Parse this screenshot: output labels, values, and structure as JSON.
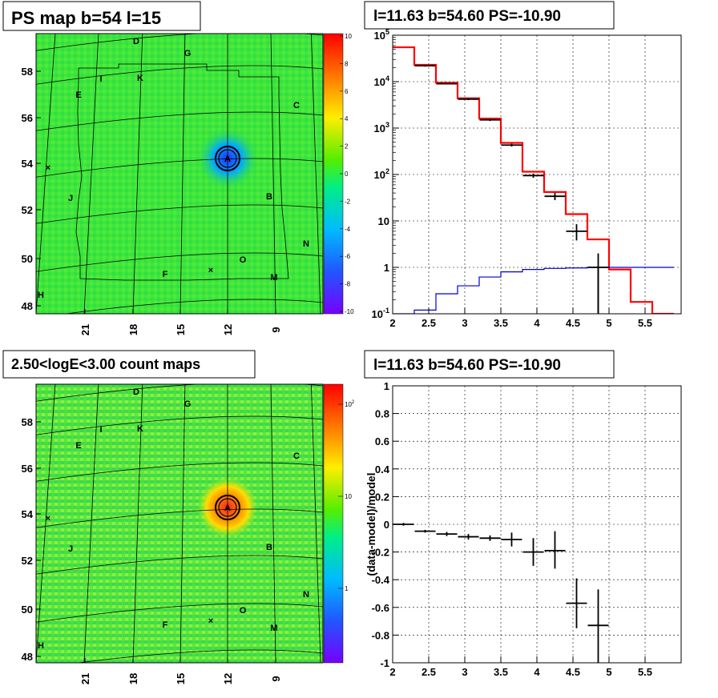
{
  "panels": {
    "ps_map_title": "PS map b=54 l=15",
    "count_map_title": "2.50<logE<3.00 count maps",
    "spectrum_title": "l=11.63 b=54.60 PS=-10.90",
    "residual_title": "l=11.63 b=54.60 PS=-10.90"
  },
  "map_axes": {
    "lon_ticks": [
      "21",
      "18",
      "15",
      "12",
      "9"
    ],
    "lat_ticks": [
      "58",
      "56",
      "54",
      "52",
      "50",
      "48"
    ],
    "source_labels": [
      "A",
      "B",
      "C",
      "D",
      "E",
      "F",
      "G",
      "H",
      "I",
      "J",
      "K",
      "M",
      "N",
      "O"
    ]
  },
  "ps_colorbar": {
    "ticks": [
      "10",
      "8",
      "6",
      "4",
      "2",
      "0",
      "-2",
      "-4",
      "-6",
      "-8",
      "-10"
    ]
  },
  "count_colorbar": {
    "ticks": [
      "10^2",
      "10",
      "1"
    ]
  },
  "colors": {
    "model": "#ff0000",
    "background_model": "#0000cc",
    "data": "#000000",
    "map_fill": "#33e833"
  },
  "chart_data": [
    {
      "type": "line",
      "xlabel": "",
      "ylabel": "",
      "xlim": [
        2,
        6
      ],
      "ylim": [
        0.1,
        100000
      ],
      "log_y": true,
      "grid": true,
      "x_ticks": [
        "2",
        "2.5",
        "3",
        "3.5",
        "4",
        "4.5",
        "5",
        "5.5"
      ],
      "y_ticks": [
        "10^-1",
        "1",
        "10",
        "10^2",
        "10^3",
        "10^4",
        "10^5"
      ],
      "bin_edges": [
        2.0,
        2.3,
        2.6,
        2.9,
        3.2,
        3.5,
        3.8,
        4.1,
        4.4,
        4.7,
        5.0,
        5.3,
        5.6,
        5.9
      ],
      "series": [
        {
          "values": [
            55000,
            23000,
            9500,
            4400,
            1600,
            480,
            115,
            42,
            14,
            4,
            0.9,
            0.18,
            0.1
          ]
        },
        {
          "values": [
            0.1,
            0.12,
            0.27,
            0.4,
            0.62,
            0.8,
            0.9,
            0.95,
            0.97,
            1.0,
            1.0,
            1.0,
            1.0
          ]
        }
      ],
      "points": [
        {
          "x": 2.45,
          "y": 22000,
          "ylo": 21000,
          "yhi": 23000
        },
        {
          "x": 2.75,
          "y": 9000,
          "ylo": 8700,
          "yhi": 9300
        },
        {
          "x": 3.05,
          "y": 4200,
          "ylo": 4000,
          "yhi": 4400
        },
        {
          "x": 3.35,
          "y": 1500,
          "ylo": 1420,
          "yhi": 1580
        },
        {
          "x": 3.65,
          "y": 430,
          "ylo": 400,
          "yhi": 460
        },
        {
          "x": 3.95,
          "y": 95,
          "ylo": 85,
          "yhi": 105
        },
        {
          "x": 4.25,
          "y": 34,
          "ylo": 28,
          "yhi": 40
        },
        {
          "x": 4.55,
          "y": 6,
          "ylo": 3.8,
          "yhi": 8.5
        },
        {
          "x": 4.85,
          "y": 1.0,
          "ylo": 0.1,
          "yhi": 2.0
        }
      ]
    },
    {
      "type": "scatter",
      "xlabel": "",
      "ylabel": "(data-model)/model",
      "xlim": [
        2,
        6
      ],
      "ylim": [
        -1,
        1
      ],
      "grid": true,
      "x_ticks": [
        "2",
        "2.5",
        "3",
        "3.5",
        "4",
        "4.5",
        "5",
        "5.5"
      ],
      "y_ticks": [
        "-1",
        "-0.8",
        "-0.6",
        "-0.4",
        "-0.2",
        "0",
        "0.2",
        "0.4",
        "0.6",
        "0.8",
        "1"
      ],
      "points": [
        {
          "x": 2.15,
          "y": 0.0,
          "ylo": -0.01,
          "yhi": 0.01
        },
        {
          "x": 2.45,
          "y": -0.05,
          "ylo": -0.06,
          "yhi": -0.04
        },
        {
          "x": 2.75,
          "y": -0.07,
          "ylo": -0.085,
          "yhi": -0.055
        },
        {
          "x": 3.05,
          "y": -0.09,
          "ylo": -0.11,
          "yhi": -0.07
        },
        {
          "x": 3.35,
          "y": -0.1,
          "ylo": -0.12,
          "yhi": -0.08
        },
        {
          "x": 3.65,
          "y": -0.11,
          "ylo": -0.16,
          "yhi": -0.06
        },
        {
          "x": 3.95,
          "y": -0.2,
          "ylo": -0.3,
          "yhi": -0.1
        },
        {
          "x": 4.25,
          "y": -0.19,
          "ylo": -0.32,
          "yhi": -0.05
        },
        {
          "x": 4.55,
          "y": -0.57,
          "ylo": -0.75,
          "yhi": -0.39
        },
        {
          "x": 4.85,
          "y": -0.73,
          "ylo": -1.0,
          "yhi": -0.47
        }
      ]
    }
  ]
}
